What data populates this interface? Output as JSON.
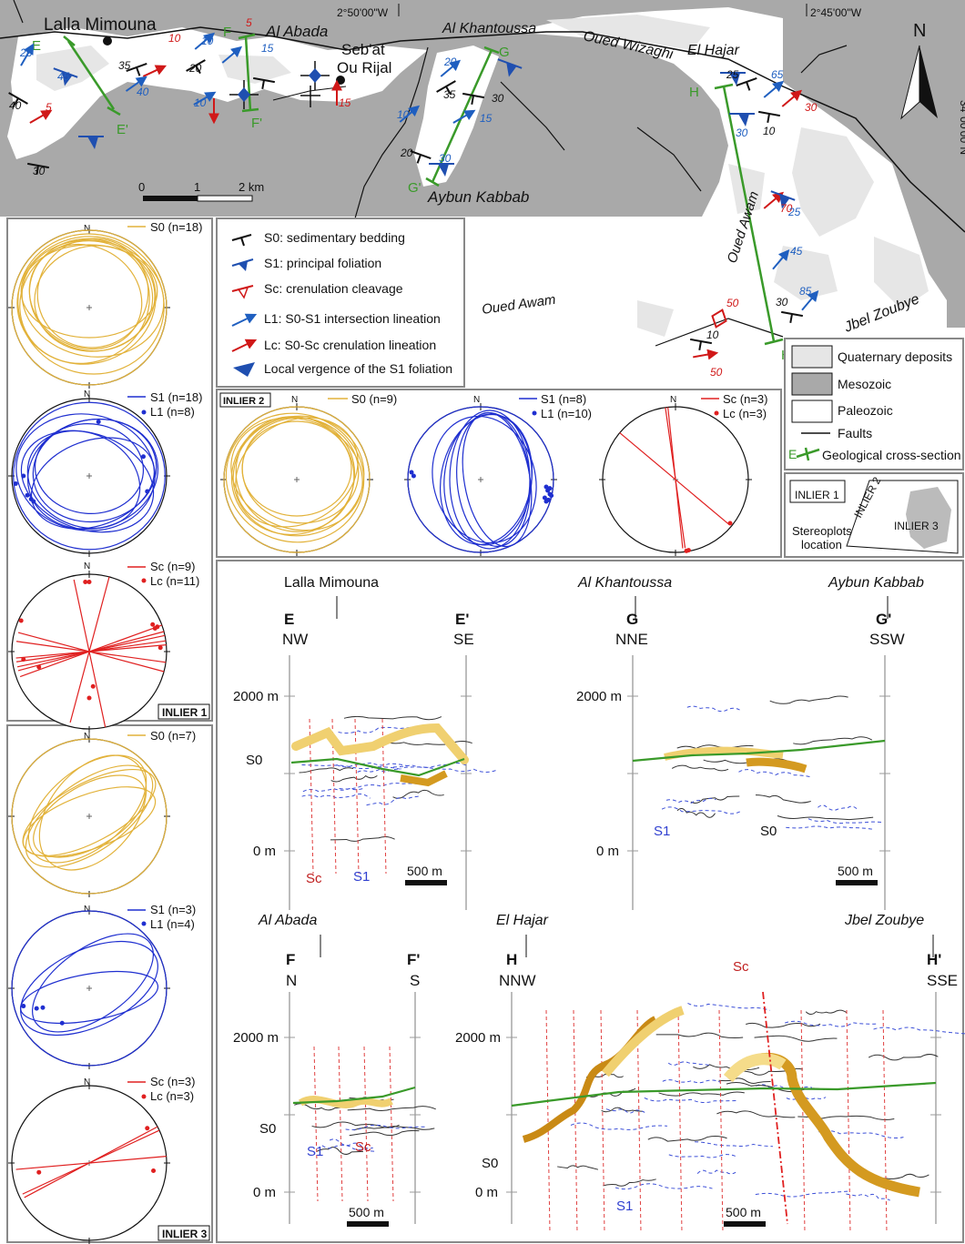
{
  "map": {
    "places": {
      "lalla_mimouna": "Lalla Mimouna",
      "al_abada": "Al Abada",
      "sebat": "Seb'at",
      "ou_rijal": "Ou Rijal",
      "al_khantoussa": "Al Khantoussa",
      "oued_wizaghi": "Oued Wizaghi",
      "el_hajar": "El Hajar",
      "aybun_kabbab": "Aybun Kabbab",
      "oued_awam_1": "Oued Awam",
      "oued_awam_2": "Oued Awam",
      "jbel_zoubye": "Jbel Zoubye"
    },
    "coords": {
      "lon1": "2°50'00\"W",
      "lon2": "2°45'00\"W",
      "lat": "34°00'00\"N"
    },
    "north": "N",
    "scale": {
      "t0": "0",
      "t1": "1",
      "t2": "2 km"
    },
    "section_letters": {
      "E": "E",
      "E2": "E'",
      "F": "F",
      "F2": "F'",
      "G": "G",
      "G2": "G'",
      "H": "H",
      "H2": "H'"
    },
    "dips": [
      "25",
      "45",
      "40",
      "5",
      "30",
      "35",
      "10",
      "40",
      "20",
      "10",
      "20",
      "15",
      "5",
      "10",
      "15",
      "35",
      "30",
      "10",
      "15",
      "20",
      "30",
      "20",
      "20",
      "25",
      "65",
      "30",
      "10",
      "30",
      "70",
      "25",
      "45",
      "30",
      "85",
      "50",
      "10",
      "50",
      "40"
    ]
  },
  "legend": {
    "items": [
      "S0: sedimentary bedding",
      "S1: principal foliation",
      "Sc: crenulation cleavage",
      "L1: S0-S1 intersection lineation",
      "Lc: S0-Sc crenulation lineation",
      "Local vergence of the S1 foliation"
    ],
    "units": [
      "Quaternary deposits",
      "Mesozoic",
      "Paleozoic",
      "Faults",
      "Geological cross-section"
    ],
    "section_mark": "E"
  },
  "location_box": {
    "inlier1": "INLIER 1",
    "inlier2": "INLIER 2",
    "inlier3": "INLIER 3",
    "caption_1": "Stereoplots",
    "caption_2": "location"
  },
  "stereo": {
    "north": "N",
    "inlier1": {
      "label": "INLIER 1",
      "s0": "S0 (n=18)",
      "s1": "S1 (n=18)",
      "l1": "L1 (n=8)",
      "sc": "Sc (n=9)",
      "lc": "Lc (n=11)"
    },
    "inlier2": {
      "label": "INLIER 2",
      "s0": "S0 (n=9)",
      "s1": "S1 (n=8)",
      "l1": "L1 (n=10)",
      "sc": "Sc (n=3)",
      "lc": "Lc (n=3)"
    },
    "inlier3": {
      "label": "INLIER 3",
      "s0": "S0 (n=7)",
      "s1": "S1 (n=3)",
      "l1": "L1 (n=4)",
      "sc": "Sc (n=3)",
      "lc": "Lc (n=3)"
    }
  },
  "sections": {
    "E": {
      "place": "Lalla Mimouna",
      "left_letter": "E",
      "right_letter": "E'",
      "left_dir": "NW",
      "right_dir": "SE"
    },
    "G": {
      "place_left": "Al Khantoussa",
      "place_right": "Aybun Kabbab",
      "left_letter": "G",
      "right_letter": "G'",
      "left_dir": "NNE",
      "right_dir": "SSW"
    },
    "F": {
      "place": "Al Abada",
      "left_letter": "F",
      "right_letter": "F'",
      "left_dir": "N",
      "right_dir": "S"
    },
    "H": {
      "place_left": "El Hajar",
      "place_right": "Jbel Zoubye",
      "left_letter": "H",
      "right_letter": "H'",
      "left_dir": "NNW",
      "right_dir": "SSE"
    },
    "elev_2000": "2000 m",
    "elev_0": "0 m",
    "scale": "500 m",
    "labels": {
      "s0": "S0",
      "s1": "S1",
      "sc": "Sc"
    }
  },
  "colors": {
    "s0": "#e2b23a",
    "s1": "#1f2fd0",
    "sc": "#e02020",
    "section": "#3a9a2a",
    "mesozoic": "#a9a9a9",
    "quaternary": "#e6e6e6"
  }
}
